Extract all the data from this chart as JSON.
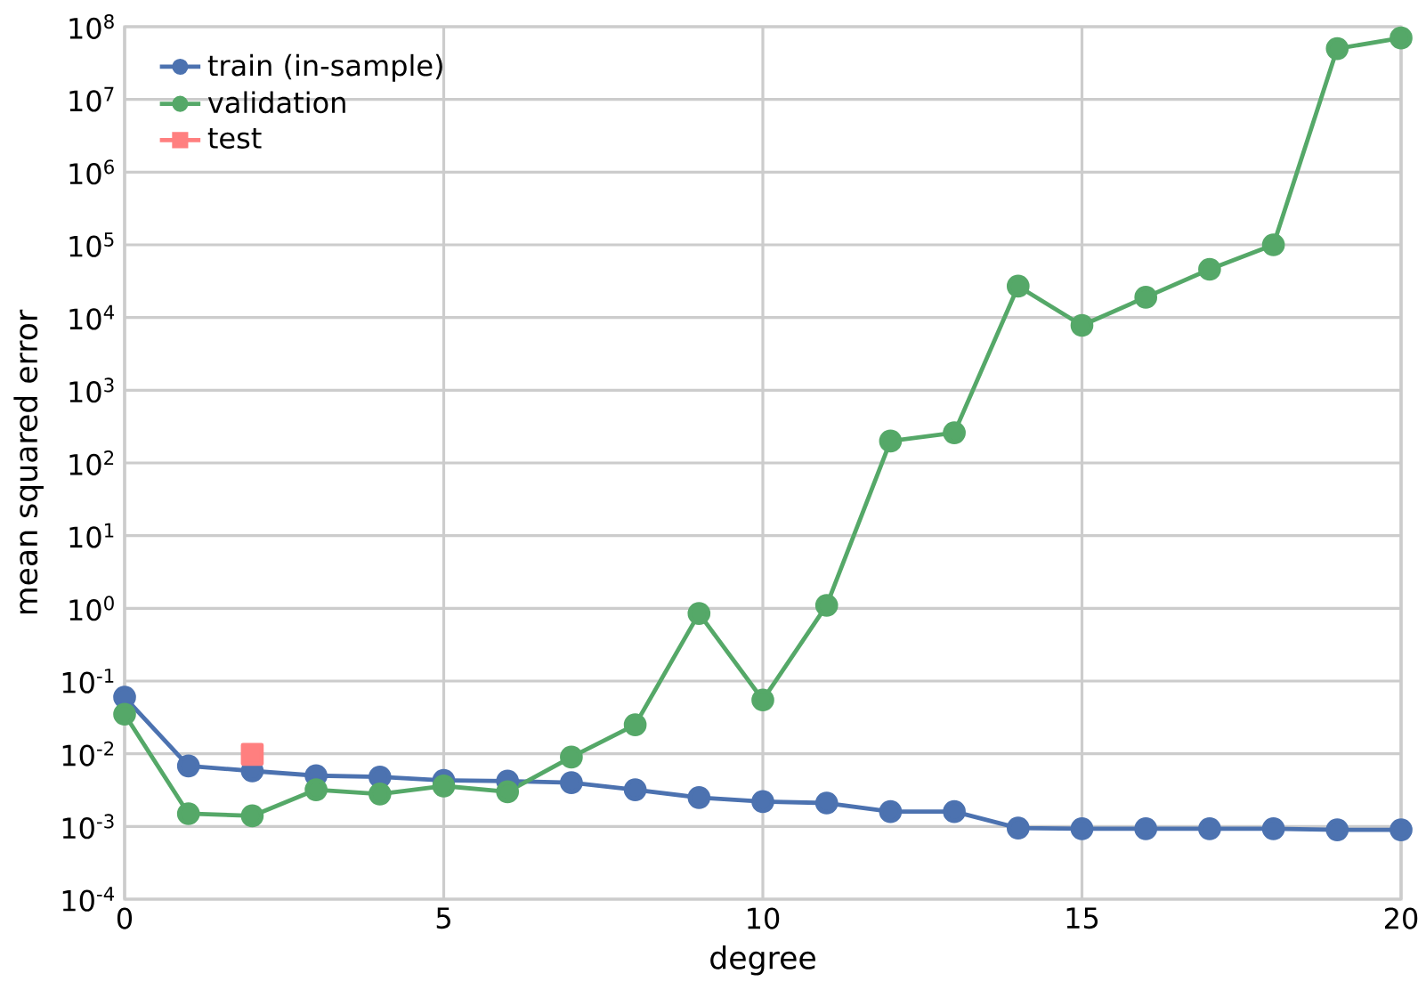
{
  "chart_data": {
    "type": "line",
    "xlabel": "degree",
    "ylabel": "mean squared error",
    "log": "y",
    "grid": true,
    "legend": "top left",
    "line_style": "solid",
    "x": [
      0,
      1,
      2,
      3,
      4,
      5,
      6,
      7,
      8,
      9,
      10,
      11,
      12,
      13,
      14,
      15,
      16,
      17,
      18,
      19,
      20
    ],
    "xlim": [
      0,
      20
    ],
    "xticks": [
      0,
      5,
      10,
      15,
      20
    ],
    "ylim": [
      0.0001,
      100000000
    ],
    "yticks": [
      {
        "value": 0.0001,
        "label": "10$^{-4}$"
      },
      {
        "value": 0.001,
        "label": "10$^{-3}$"
      },
      {
        "value": 0.01,
        "label": "10$^{-2}$"
      },
      {
        "value": 0.1,
        "label": "10$^{-1}$"
      },
      {
        "value": 1,
        "label": "10$^{0}$"
      },
      {
        "value": 10,
        "label": "10$^{1}$"
      },
      {
        "value": 100,
        "label": "10$^{2}$"
      },
      {
        "value": 1000,
        "label": "10$^{3}$"
      },
      {
        "value": 10000,
        "label": "10$^{4}$"
      },
      {
        "value": 100000,
        "label": "10$^{5}$"
      },
      {
        "value": 1000000,
        "label": "10$^{6}$"
      },
      {
        "value": 10000000,
        "label": "10$^{7}$"
      },
      {
        "value": 100000000,
        "label": "10$^{8}$"
      }
    ],
    "series": [
      {
        "name": "train (in-sample)",
        "color": "#4c72b0",
        "marker": "circle",
        "values": [
          0.06,
          0.0068,
          0.0058,
          0.005,
          0.0048,
          0.0043,
          0.0042,
          0.004,
          0.0032,
          0.0025,
          0.0022,
          0.0021,
          0.0016,
          0.0016,
          0.00095,
          0.00093,
          0.00093,
          0.00093,
          0.00093,
          0.0009,
          0.0009
        ]
      },
      {
        "name": "validation",
        "color": "#55a868",
        "marker": "circle",
        "values": [
          0.035,
          0.0015,
          0.0014,
          0.0032,
          0.0028,
          0.0036,
          0.003,
          0.009,
          0.025,
          0.85,
          0.055,
          1.1,
          200,
          260,
          27000,
          7800,
          19000,
          46000,
          100000,
          50000000,
          70000000
        ]
      },
      {
        "name": "test",
        "color": "#ff7f7f",
        "marker": "square",
        "x": [
          2
        ],
        "values": [
          0.0098
        ]
      }
    ]
  }
}
